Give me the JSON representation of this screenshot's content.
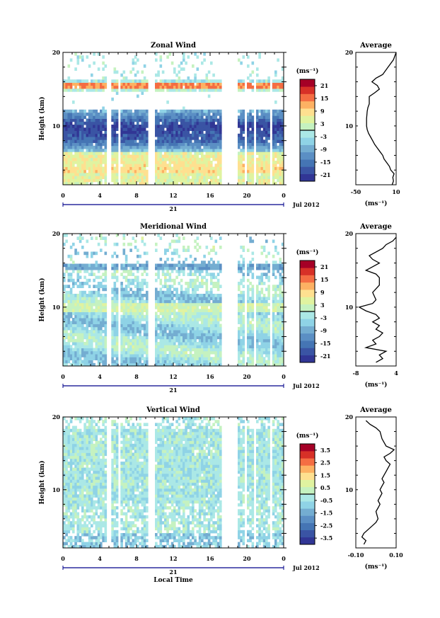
{
  "colors": {
    "scale": [
      "#313695",
      "#3a54a4",
      "#4575b4",
      "#5b8fc4",
      "#74add1",
      "#8fd3e6",
      "#abe8e6",
      "#c5f2c0",
      "#e0f3a0",
      "#fee090",
      "#fdb163",
      "#f46d43",
      "#d73027",
      "#a50026"
    ],
    "axis": "#000000",
    "time_axis": "#00008b",
    "gap": "#ffffff"
  },
  "date_label": "Jul 2012",
  "day_label": "21",
  "time_ticks": [
    "0",
    "4",
    "8",
    "12",
    "16",
    "20",
    "0"
  ],
  "xlabel": "Local Time",
  "chart_data": [
    {
      "type": "heatmap",
      "title": "Zonal Wind",
      "ylabel": "Height (km)",
      "ylim": [
        2,
        20
      ],
      "yticks": [
        "10",
        "20"
      ],
      "colorbar": {
        "unit": "(ms⁻¹)",
        "ticks": [
          "21",
          "15",
          "9",
          "3",
          "-3",
          "-9",
          "-15",
          "-21"
        ],
        "range": [
          -24,
          24
        ]
      },
      "data_gaps_hours": [
        [
          4.8,
          5.3
        ],
        [
          5.9,
          6.3
        ],
        [
          9.3,
          9.9
        ],
        [
          17.2,
          19.0
        ],
        [
          19.8,
          20.0
        ],
        [
          20.7,
          20.9
        ],
        [
          22.5,
          22.8
        ]
      ],
      "profile": {
        "label": "Average",
        "xlabel": "(ms⁻¹)",
        "xticks": [
          "-50",
          "10"
        ],
        "xlim": [
          -50,
          10
        ],
        "x": [
          4,
          6,
          5,
          7,
          2,
          0,
          -4,
          -8,
          -10,
          -14,
          -18,
          -22,
          -25,
          -28,
          -31,
          -33,
          -34,
          -34,
          -33,
          -32,
          -30,
          -30,
          -22,
          -15,
          -18,
          -26,
          -20,
          -10,
          -2,
          6,
          10
        ],
        "y": [
          2,
          2.5,
          3,
          3.5,
          4,
          4.5,
          5,
          5.5,
          6,
          6.5,
          7,
          7.5,
          8,
          8.5,
          9,
          9.5,
          10,
          11,
          12,
          12.5,
          13,
          14,
          14.5,
          15,
          15.5,
          16,
          16.5,
          17,
          18,
          19,
          20
        ]
      }
    },
    {
      "type": "heatmap",
      "title": "Meridional Wind",
      "ylabel": "Height (km)",
      "ylim": [
        2,
        20
      ],
      "yticks": [
        "10",
        "20"
      ],
      "colorbar": {
        "unit": "(ms⁻¹)",
        "ticks": [
          "21",
          "15",
          "9",
          "3",
          "-3",
          "-9",
          "-15",
          "-21"
        ],
        "range": [
          -24,
          24
        ]
      },
      "data_gaps_hours": [
        [
          4.8,
          5.3
        ],
        [
          5.9,
          6.3
        ],
        [
          9.3,
          9.9
        ],
        [
          17.2,
          19.0
        ],
        [
          19.8,
          20.0
        ],
        [
          20.7,
          20.9
        ],
        [
          22.5,
          22.8
        ]
      ],
      "profile": {
        "label": "Average",
        "xlabel": "(ms⁻¹)",
        "xticks": [
          "-8",
          "4"
        ],
        "xlim": [
          -8,
          4
        ],
        "x": [
          -2,
          0,
          -1,
          1,
          -5,
          -2,
          -3,
          -1,
          0,
          -2,
          -1,
          -3,
          -1,
          -2,
          -5,
          -7,
          -3,
          -2,
          -3,
          -1,
          -1,
          -2,
          -5,
          -3,
          -1,
          -3,
          -4,
          0,
          1,
          3,
          4
        ],
        "y": [
          2.5,
          3,
          3.5,
          4,
          4.5,
          5,
          5.5,
          6,
          6.5,
          7,
          7.5,
          8,
          8.5,
          9,
          9.5,
          10,
          10.5,
          11,
          12,
          13,
          14,
          14.5,
          15,
          15.5,
          16,
          16.5,
          17,
          18,
          18.5,
          19,
          19.5
        ]
      }
    },
    {
      "type": "heatmap",
      "title": "Vertical Wind",
      "ylabel": "Height (km)",
      "ylim": [
        2,
        20
      ],
      "yticks": [
        "10",
        "20"
      ],
      "colorbar": {
        "unit": "(ms⁻¹)",
        "ticks": [
          "3.5",
          "2.5",
          "1.5",
          "0.5",
          "-0.5",
          "-1.5",
          "-2.5",
          "-3.5"
        ],
        "range": [
          -4,
          4
        ]
      },
      "data_gaps_hours": [
        [
          4.8,
          5.3
        ],
        [
          5.9,
          6.3
        ],
        [
          9.3,
          9.9
        ],
        [
          17.2,
          19.0
        ],
        [
          19.8,
          20.0
        ],
        [
          20.7,
          20.9
        ],
        [
          22.5,
          22.8
        ]
      ],
      "profile": {
        "label": "Average",
        "xlabel": "(ms⁻¹)",
        "xticks": [
          "-0.10",
          "0.10"
        ],
        "xlim": [
          -0.1,
          0.1
        ],
        "x": [
          -0.06,
          -0.05,
          -0.07,
          -0.06,
          -0.02,
          0.0,
          0.01,
          0.0,
          0.01,
          0.02,
          0.01,
          0.02,
          0.03,
          0.02,
          0.03,
          0.04,
          0.03,
          0.04,
          0.05,
          0.06,
          0.07,
          0.05,
          0.04,
          0.07,
          0.09,
          0.05,
          0.03,
          0.02,
          0.0,
          -0.03,
          -0.05
        ],
        "y": [
          2.5,
          3,
          3.5,
          4,
          5,
          5.5,
          6,
          7,
          7.5,
          8,
          8.5,
          9,
          9.5,
          10,
          10.5,
          11,
          11.5,
          12,
          12.5,
          13,
          13.5,
          14,
          14.5,
          15,
          15.5,
          16,
          17,
          18,
          18.5,
          19,
          19.5
        ]
      }
    }
  ]
}
